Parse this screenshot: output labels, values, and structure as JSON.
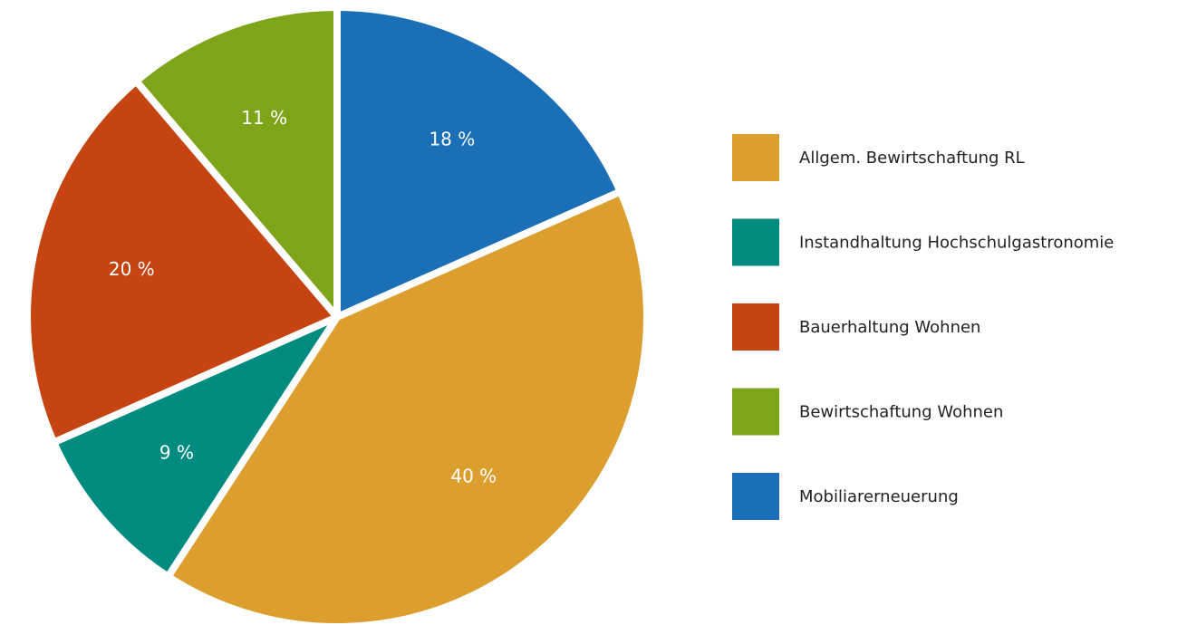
{
  "chart_data": {
    "type": "pie",
    "categories": [
      "Allgem. Bewirtschaftung RL",
      "Instandhaltung Hochschulgastronomie",
      "Bauerhaltung Wohnen",
      "Bewirtschaftung Wohnen",
      "Mobiliarerneuerung"
    ],
    "values": [
      40,
      9,
      20,
      11,
      18
    ],
    "value_labels": [
      "40 %",
      "9 %",
      "20 %",
      "11 %",
      "18 %"
    ],
    "colors": [
      "#dc9e2f",
      "#008b80",
      "#c54412",
      "#7ea51a",
      "#1a6fb7"
    ],
    "legend": "right"
  }
}
